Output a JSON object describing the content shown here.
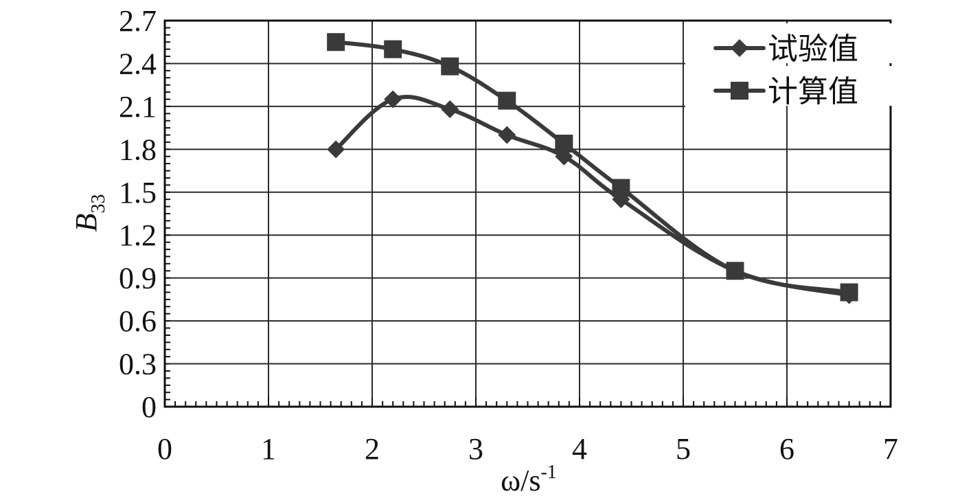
{
  "chart_data": {
    "type": "line",
    "title": "",
    "xlabel": "ω/s⁻¹",
    "ylabel": "B33",
    "ylabel_main": "B",
    "ylabel_sub": "33",
    "xlabel_main": "ω/s",
    "xlabel_sup": "-1",
    "xlim": [
      0,
      7
    ],
    "ylim": [
      0,
      2.7
    ],
    "xticks": [
      "0",
      "1",
      "2",
      "3",
      "4",
      "5",
      "6",
      "7"
    ],
    "yticks": [
      "0",
      "0.3",
      "0.6",
      "0.9",
      "1.2",
      "1.5",
      "1.8",
      "2.1",
      "2.4",
      "2.7"
    ],
    "grid": true,
    "legend_position": "top-right",
    "series": [
      {
        "name": "试验值",
        "marker": "diamond",
        "color": "#3a3a3a",
        "x": [
          1.65,
          2.2,
          2.75,
          3.3,
          3.85,
          4.4,
          5.5,
          6.6
        ],
        "y": [
          1.8,
          2.15,
          2.08,
          1.9,
          1.75,
          1.45,
          0.95,
          0.78
        ]
      },
      {
        "name": "计算值",
        "marker": "square",
        "color": "#3a3a3a",
        "x": [
          1.65,
          2.2,
          2.75,
          3.3,
          3.85,
          4.4,
          5.5,
          6.6
        ],
        "y": [
          2.55,
          2.5,
          2.38,
          2.14,
          1.84,
          1.53,
          0.95,
          0.8
        ]
      }
    ]
  }
}
